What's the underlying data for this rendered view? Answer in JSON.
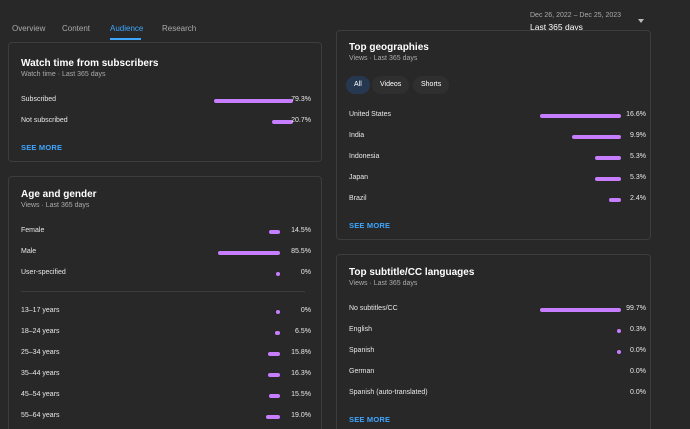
{
  "tabs": [
    {
      "label": "Overview",
      "active": false
    },
    {
      "label": "Content",
      "active": false
    },
    {
      "label": "Audience",
      "active": true
    },
    {
      "label": "Research",
      "active": false
    }
  ],
  "date_range": {
    "range": "Dec 26, 2022 – Dec 25, 2023",
    "label": "Last 365 days"
  },
  "accent_color": "#3ea6ff",
  "bar_color": "#c77dff",
  "watch_time": {
    "title": "Watch time from subscribers",
    "subtitle": "Watch time · Last 365 days",
    "rows": [
      {
        "label": "Subscribed",
        "pct": "79.3%",
        "value": 79.3
      },
      {
        "label": "Not subscribed",
        "pct": "20.7%",
        "value": 20.7
      }
    ],
    "see_more": "SEE MORE"
  },
  "age_gender": {
    "title": "Age and gender",
    "subtitle": "Views · Last 365 days",
    "gender": [
      {
        "label": "Female",
        "pct": "14.5%",
        "value": 14.5
      },
      {
        "label": "Male",
        "pct": "85.5%",
        "value": 85.5
      },
      {
        "label": "User-specified",
        "pct": "0%",
        "value": 0
      }
    ],
    "ages": [
      {
        "label": "13–17 years",
        "pct": "0%",
        "value": 0
      },
      {
        "label": "18–24 years",
        "pct": "6.5%",
        "value": 6.5
      },
      {
        "label": "25–34 years",
        "pct": "15.8%",
        "value": 15.8
      },
      {
        "label": "35–44 years",
        "pct": "16.3%",
        "value": 16.3
      },
      {
        "label": "45–54 years",
        "pct": "15.5%",
        "value": 15.5
      },
      {
        "label": "55–64 years",
        "pct": "19.0%",
        "value": 19.0
      }
    ]
  },
  "geographies": {
    "title": "Top geographies",
    "subtitle": "Views · Last 365 days",
    "chips": [
      {
        "label": "All",
        "selected": true
      },
      {
        "label": "Videos",
        "selected": false
      },
      {
        "label": "Shorts",
        "selected": false
      }
    ],
    "rows": [
      {
        "label": "United States",
        "pct": "16.6%",
        "value": 16.6
      },
      {
        "label": "India",
        "pct": "9.9%",
        "value": 9.9
      },
      {
        "label": "Indonesia",
        "pct": "5.3%",
        "value": 5.3
      },
      {
        "label": "Japan",
        "pct": "5.3%",
        "value": 5.3
      },
      {
        "label": "Brazil",
        "pct": "2.4%",
        "value": 2.4
      }
    ],
    "see_more": "SEE MORE"
  },
  "subtitles": {
    "title": "Top subtitle/CC languages",
    "subtitle": "Views · Last 365 days",
    "rows": [
      {
        "label": "No subtitles/CC",
        "pct": "99.7%",
        "value": 99.7
      },
      {
        "label": "English",
        "pct": "0.3%",
        "value": 0.3
      },
      {
        "label": "Spanish",
        "pct": "0.0%",
        "value": 0.0
      },
      {
        "label": "German",
        "pct": "0.0%",
        "value": null
      },
      {
        "label": "Spanish (auto-translated)",
        "pct": "0.0%",
        "value": null
      }
    ],
    "see_more": "SEE MORE"
  }
}
